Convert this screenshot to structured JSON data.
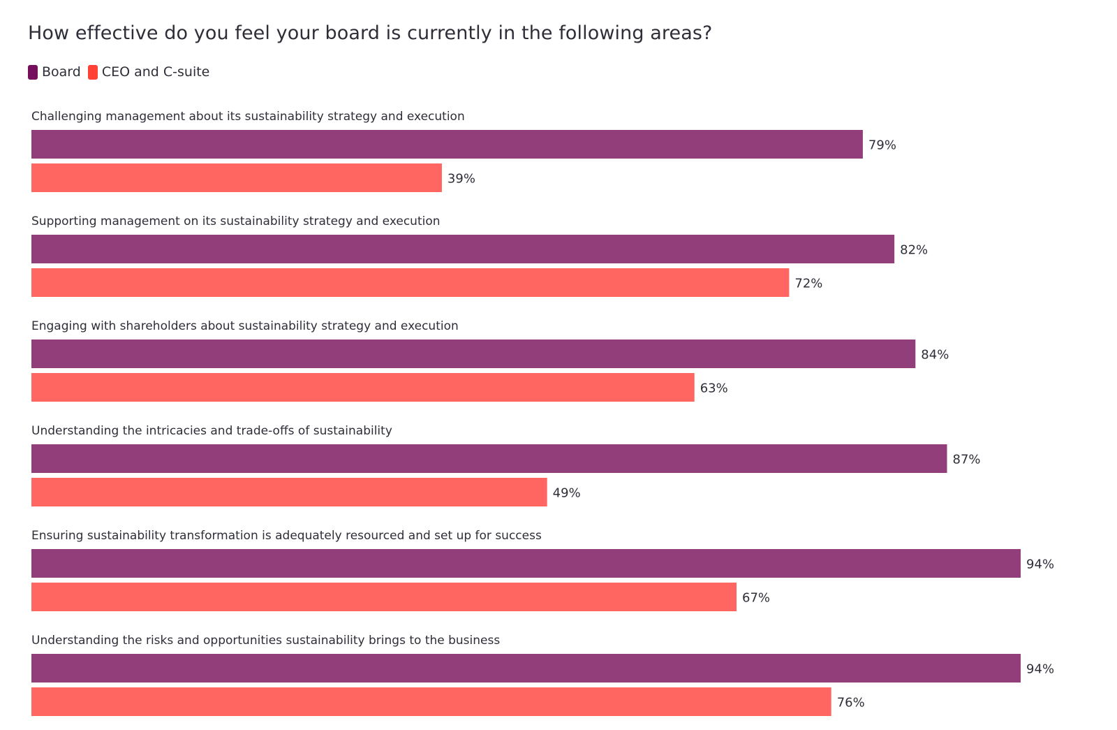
{
  "chart_data": {
    "type": "bar",
    "orientation": "horizontal",
    "title": "How effective do you feel your board is currently in the following areas?",
    "xlabel": "",
    "ylabel": "",
    "xlim": [
      0,
      100
    ],
    "grid": false,
    "legend_placement": "top-left",
    "categories": [
      "Challenging management about its sustainability strategy and execution",
      "Supporting management on its sustainability strategy and execution",
      "Engaging with shareholders about sustainability strategy and execution",
      "Understanding the intricacies and trade-offs of sustainability",
      "Ensuring sustainability transformation is adequately resourced and set up for success",
      "Understanding the risks and opportunities sustainability brings to the business"
    ],
    "series": [
      {
        "name": "Board",
        "color": "#913e7b",
        "swatch_color": "#750e5c",
        "values": [
          79,
          82,
          84,
          87,
          94,
          94
        ]
      },
      {
        "name": "CEO and C-suite",
        "color": "#ff6661",
        "swatch_color": "#ff4136",
        "values": [
          39,
          72,
          63,
          49,
          67,
          76
        ]
      }
    ],
    "value_suffix": "%"
  }
}
